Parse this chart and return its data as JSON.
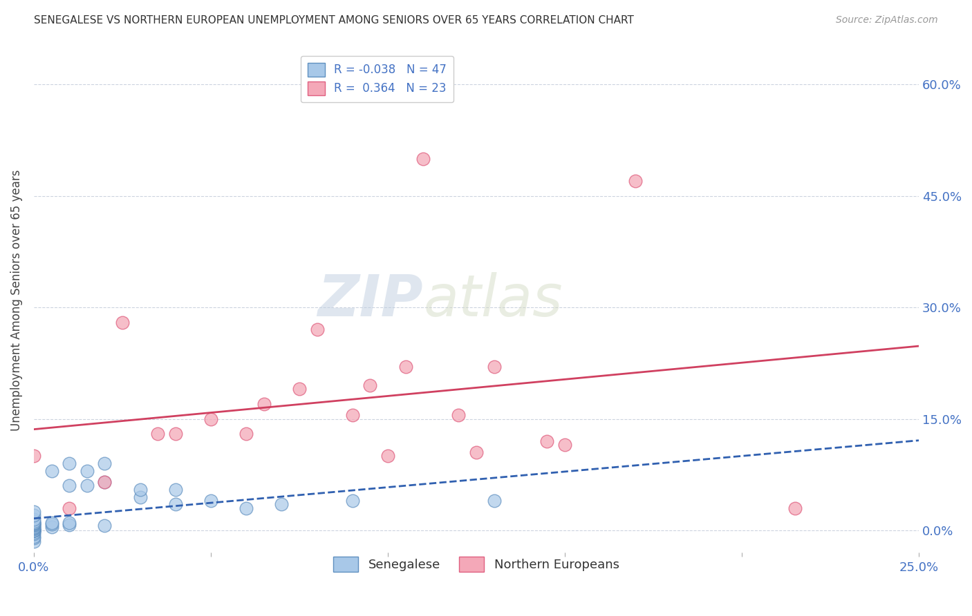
{
  "title": "SENEGALESE VS NORTHERN EUROPEAN UNEMPLOYMENT AMONG SENIORS OVER 65 YEARS CORRELATION CHART",
  "source": "Source: ZipAtlas.com",
  "ylabel": "Unemployment Among Seniors over 65 years",
  "xlim": [
    0.0,
    0.25
  ],
  "ylim": [
    -0.03,
    0.65
  ],
  "ytick_pos": [
    0.0,
    0.15,
    0.3,
    0.45,
    0.6
  ],
  "ytick_labels": [
    "0.0%",
    "15.0%",
    "30.0%",
    "45.0%",
    "60.0%"
  ],
  "xtick_pos": [
    0.0,
    0.05,
    0.1,
    0.15,
    0.2,
    0.25
  ],
  "xtick_labels": [
    "0.0%",
    "",
    "",
    "",
    "",
    "25.0%"
  ],
  "legend_R_blue": "-0.038",
  "legend_N_blue": "47",
  "legend_R_pink": "0.364",
  "legend_N_pink": "23",
  "senegalese_color": "#a8c8e8",
  "northern_color": "#f4a8b8",
  "senegalese_edge": "#6090c0",
  "northern_edge": "#e06080",
  "trend_blue_color": "#3060b0",
  "trend_pink_color": "#d04060",
  "watermark_zip": "ZIP",
  "watermark_atlas": "atlas",
  "background_color": "#ffffff",
  "senegalese_x": [
    0.0,
    0.0,
    0.0,
    0.0,
    0.0,
    0.0,
    0.0,
    0.0,
    0.0,
    0.0,
    0.0,
    0.0,
    0.0,
    0.0,
    0.0,
    0.0,
    0.0,
    0.0,
    0.0,
    0.0,
    0.0,
    0.0,
    0.0,
    0.0,
    0.0,
    0.005,
    0.005,
    0.005,
    0.005,
    0.01,
    0.01,
    0.01,
    0.01,
    0.015,
    0.015,
    0.02,
    0.02,
    0.02,
    0.03,
    0.03,
    0.04,
    0.04,
    0.05,
    0.06,
    0.07,
    0.09,
    0.13
  ],
  "senegalese_y": [
    -0.015,
    -0.01,
    -0.008,
    -0.005,
    -0.003,
    0.0,
    0.0,
    0.0,
    0.0,
    0.0,
    0.0,
    0.002,
    0.003,
    0.004,
    0.005,
    0.006,
    0.007,
    0.008,
    0.009,
    0.01,
    0.01,
    0.012,
    0.015,
    0.02,
    0.025,
    0.005,
    0.008,
    0.01,
    0.08,
    0.007,
    0.01,
    0.06,
    0.09,
    0.06,
    0.08,
    0.006,
    0.065,
    0.09,
    0.045,
    0.055,
    0.035,
    0.055,
    0.04,
    0.03,
    0.035,
    0.04,
    0.04
  ],
  "northern_x": [
    0.0,
    0.01,
    0.02,
    0.025,
    0.035,
    0.04,
    0.05,
    0.06,
    0.065,
    0.075,
    0.08,
    0.09,
    0.095,
    0.1,
    0.105,
    0.11,
    0.12,
    0.125,
    0.13,
    0.145,
    0.15,
    0.17,
    0.215
  ],
  "northern_y": [
    0.1,
    0.03,
    0.065,
    0.28,
    0.13,
    0.13,
    0.15,
    0.13,
    0.17,
    0.19,
    0.27,
    0.155,
    0.195,
    0.1,
    0.22,
    0.5,
    0.155,
    0.105,
    0.22,
    0.12,
    0.115,
    0.47,
    0.03
  ]
}
